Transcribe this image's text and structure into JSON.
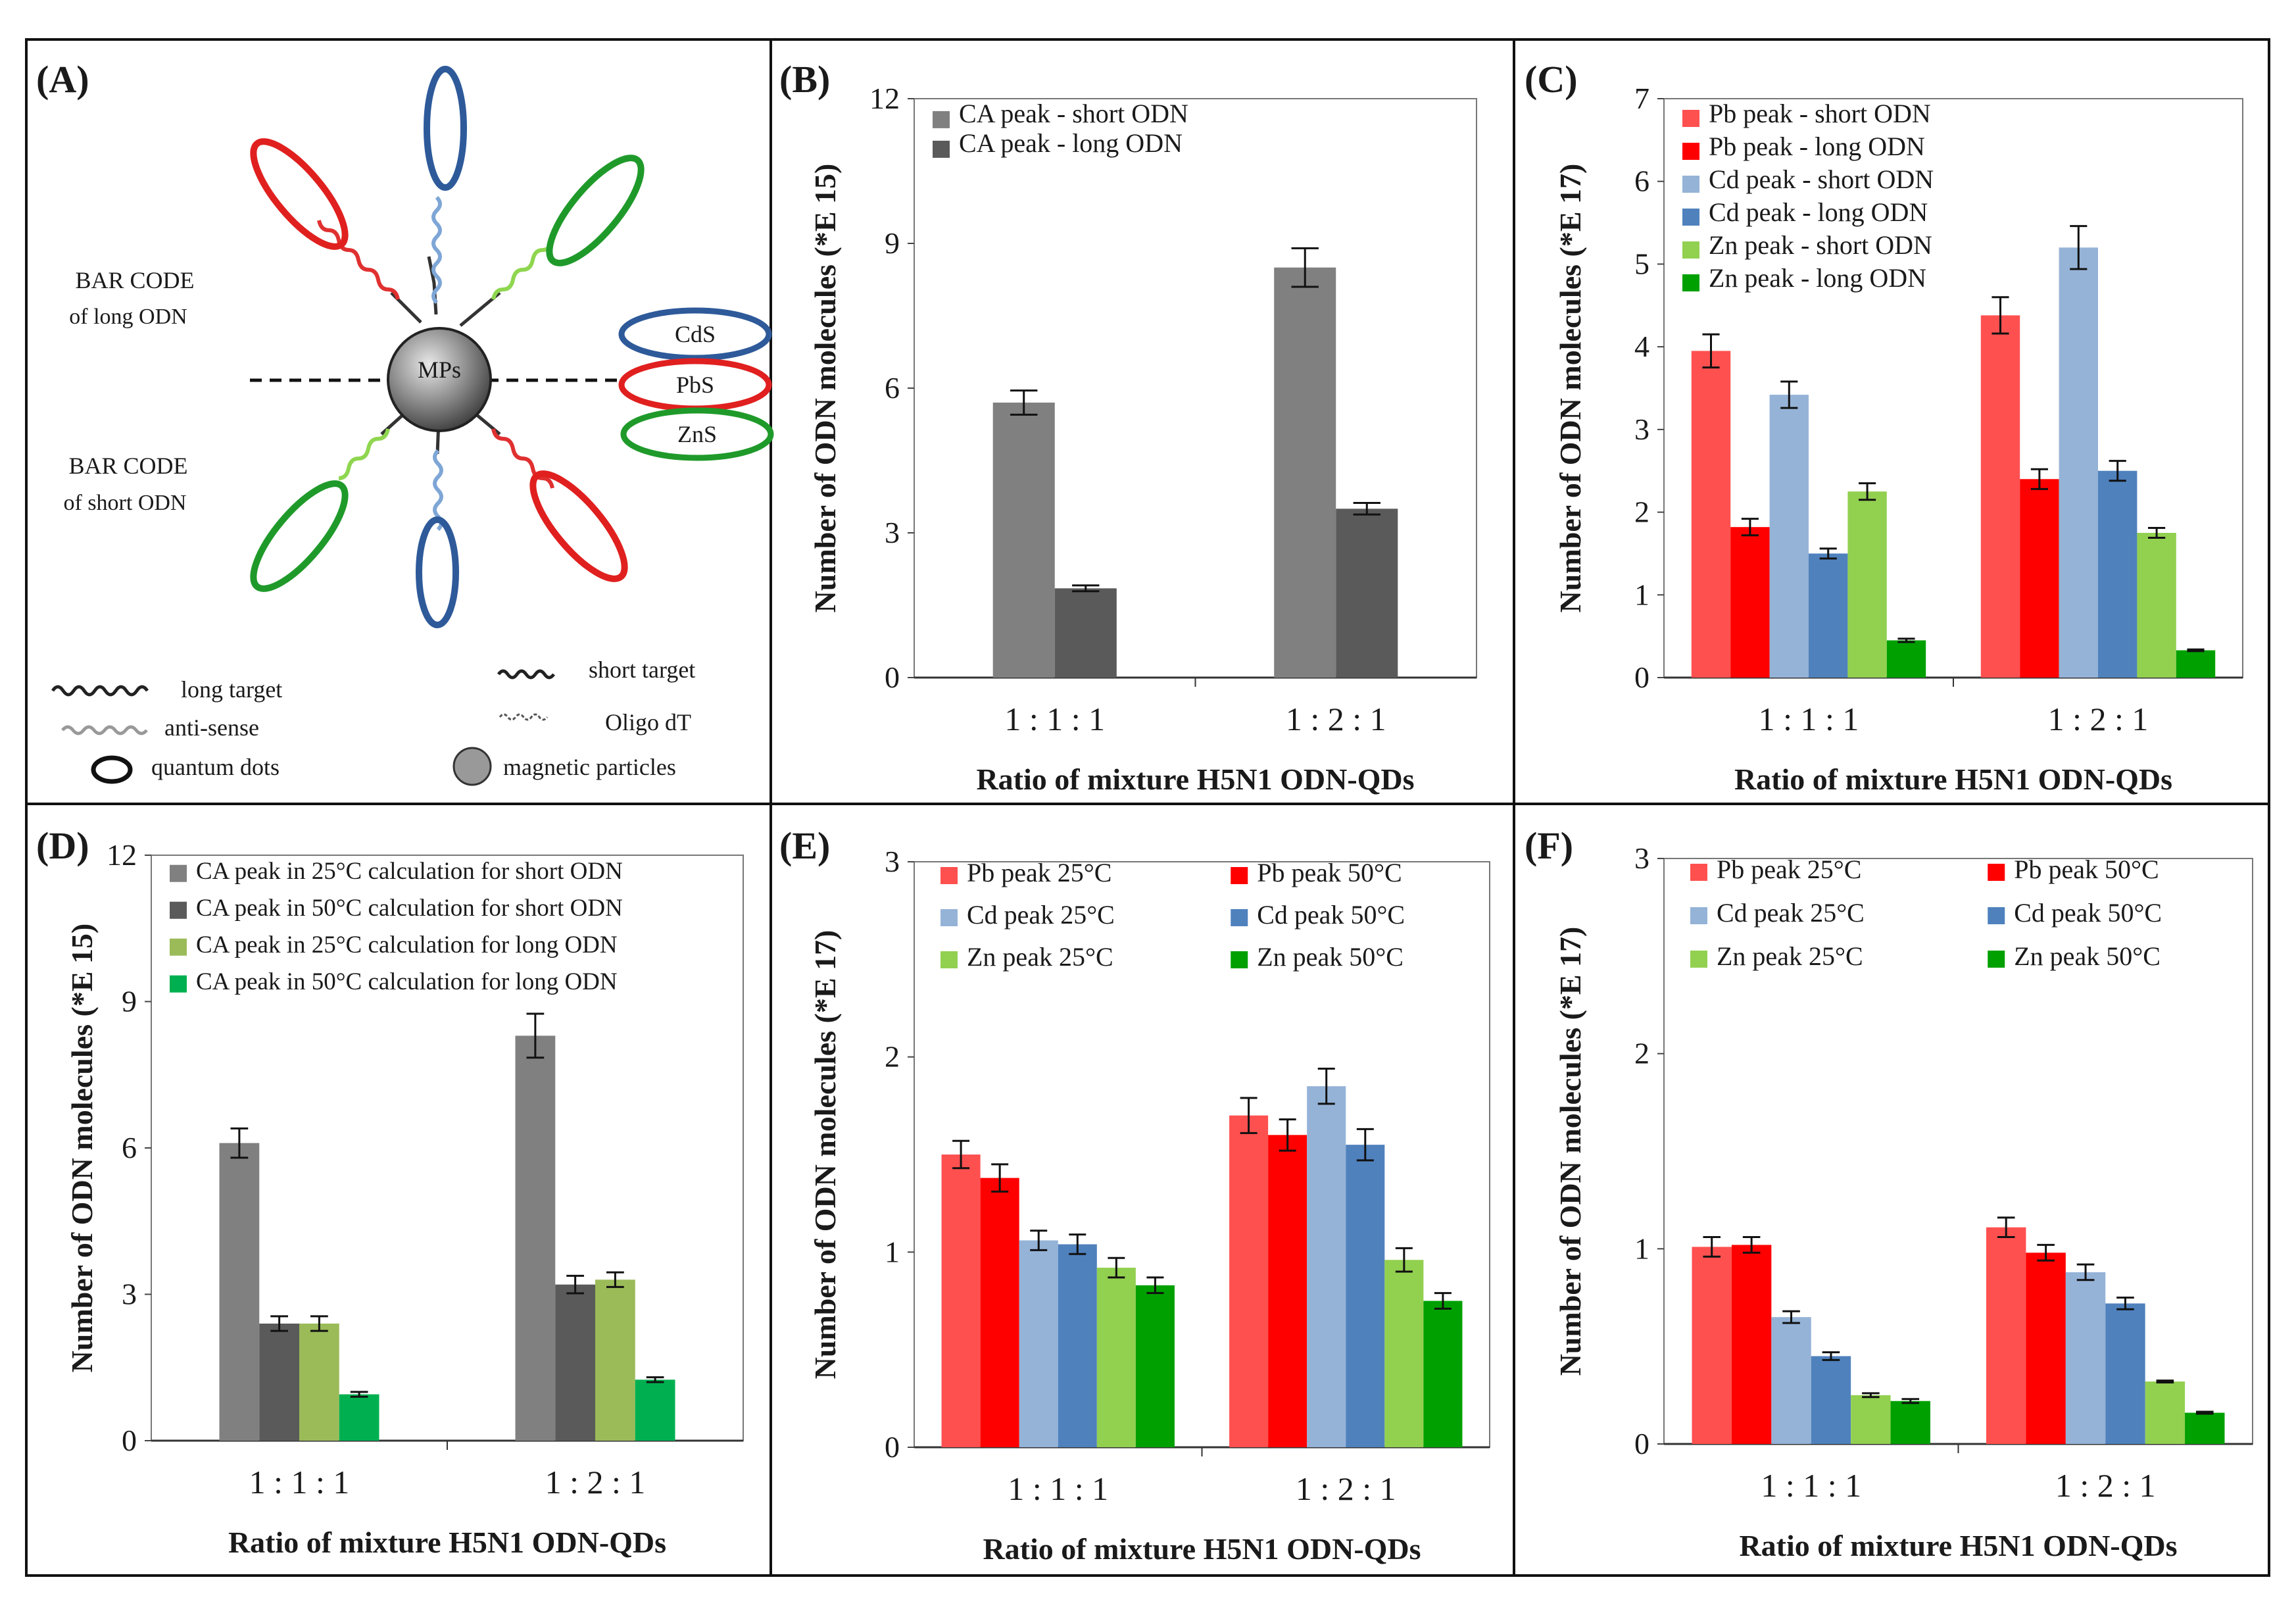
{
  "colors": {
    "gray_light": "#808080",
    "gray_dark": "#5a5a5a",
    "olive_green": "#9bbb59",
    "mint_green": "#00b050",
    "pb_short": "#ff5050",
    "pb_long": "#ff0000",
    "cd_short": "#95b3d7",
    "cd_long": "#4f81bd",
    "zn_short": "#92d050",
    "zn_long": "#00a000",
    "cds_ring": "#2e5a9a",
    "pbs_ring": "#e0201f",
    "zns_ring": "#1f9a2a"
  },
  "diagram": {
    "label": "(A)",
    "center_label": "MPs",
    "barcode_long_line1": "BAR CODE",
    "barcode_long_line2": "of long ODN",
    "barcode_short_line1": "BAR CODE",
    "barcode_short_line2": "of short ODN",
    "qd_labels": [
      "CdS",
      "PbS",
      "ZnS"
    ],
    "legend": {
      "long_target": "long target",
      "anti_sense": "anti-sense",
      "quantum_dots": "quantum dots",
      "short_target": "short target",
      "oligo_dt": "Oligo dT",
      "magnetic_particles": "magnetic particles"
    }
  },
  "chart_data": [
    {
      "id": "B",
      "label": "(B)",
      "type": "bar",
      "categories": [
        "1 : 1 : 1",
        "1 : 2 : 1"
      ],
      "ylim": [
        0,
        12
      ],
      "yticks": [
        0,
        3,
        6,
        9,
        12
      ],
      "ylabel": "Number of ODN molecules (*E 15)",
      "xlabel": "Ratio of mixture  H5N1 ODN-QDs",
      "legend_position": "top-left",
      "series": [
        {
          "name": "CA peak - short ODN",
          "color": "#808080",
          "values": [
            5.7,
            8.5
          ],
          "errors": [
            0.25,
            0.4
          ]
        },
        {
          "name": "CA peak - long ODN",
          "color": "#5a5a5a",
          "values": [
            1.85,
            3.5
          ],
          "errors": [
            0.06,
            0.12
          ]
        }
      ]
    },
    {
      "id": "C",
      "label": "(C)",
      "type": "bar",
      "categories": [
        "1 : 1 : 1",
        "1 : 2 : 1"
      ],
      "ylim": [
        0,
        7
      ],
      "yticks": [
        0,
        1,
        2,
        3,
        4,
        5,
        6,
        7
      ],
      "ylabel": "Number of ODN molecules (*E 17)",
      "xlabel": "Ratio of mixture  H5N1 ODN-QDs",
      "legend_position": "top-left",
      "series": [
        {
          "name": "Pb peak - short ODN",
          "color": "#ff5050",
          "values": [
            3.95,
            4.38
          ],
          "errors": [
            0.2,
            0.22
          ]
        },
        {
          "name": "Pb peak - long ODN",
          "color": "#ff0000",
          "values": [
            1.82,
            2.4
          ],
          "errors": [
            0.1,
            0.12
          ]
        },
        {
          "name": "Cd peak - short ODN",
          "color": "#95b3d7",
          "values": [
            3.42,
            5.2
          ],
          "errors": [
            0.16,
            0.26
          ]
        },
        {
          "name": "Cd peak - long ODN",
          "color": "#4f81bd",
          "values": [
            1.5,
            2.5
          ],
          "errors": [
            0.06,
            0.12
          ]
        },
        {
          "name": "Zn peak - short ODN",
          "color": "#92d050",
          "values": [
            2.25,
            1.75
          ],
          "errors": [
            0.1,
            0.06
          ]
        },
        {
          "name": "Zn peak - long ODN",
          "color": "#00a000",
          "values": [
            0.45,
            0.33
          ],
          "errors": [
            0.02,
            0.01
          ]
        }
      ]
    },
    {
      "id": "D",
      "label": "(D)",
      "type": "bar",
      "categories": [
        "1 : 1 : 1",
        "1 : 2 : 1"
      ],
      "ylim": [
        0,
        12
      ],
      "yticks": [
        0,
        3,
        6,
        9,
        12
      ],
      "ylabel": "Number of ODN molecules (*E 15)",
      "xlabel": "Ratio of mixture  H5N1 ODN-QDs",
      "legend_position": "top-left",
      "series": [
        {
          "name": "CA peak in 25°C calculation for short ODN",
          "color": "#808080",
          "values": [
            6.1,
            8.3
          ],
          "errors": [
            0.3,
            0.45
          ]
        },
        {
          "name": "CA peak in 50°C calculation for short ODN",
          "color": "#5a5a5a",
          "values": [
            2.4,
            3.2
          ],
          "errors": [
            0.15,
            0.18
          ]
        },
        {
          "name": "CA peak in 25°C calculation for long ODN",
          "color": "#9bbb59",
          "values": [
            2.4,
            3.3
          ],
          "errors": [
            0.15,
            0.15
          ]
        },
        {
          "name": "CA peak in 50°C calculation for long ODN",
          "color": "#00b050",
          "values": [
            0.95,
            1.25
          ],
          "errors": [
            0.05,
            0.05
          ]
        }
      ]
    },
    {
      "id": "E",
      "label": "(E)",
      "type": "bar",
      "categories": [
        "1 : 1 : 1",
        "1 : 2 : 1"
      ],
      "ylim": [
        0,
        3
      ],
      "yticks": [
        0,
        1,
        2,
        3
      ],
      "ylabel": "Number of ODN molecules (*E 17)",
      "xlabel": "Ratio of mixture  H5N1 ODN-QDs",
      "legend_position": "top",
      "series": [
        {
          "name": "Pb peak 25°C",
          "color": "#ff5050",
          "values": [
            1.5,
            1.7
          ],
          "errors": [
            0.07,
            0.09
          ]
        },
        {
          "name": "Pb peak 50°C",
          "color": "#ff0000",
          "values": [
            1.38,
            1.6
          ],
          "errors": [
            0.07,
            0.08
          ]
        },
        {
          "name": "Cd peak 25°C",
          "color": "#95b3d7",
          "values": [
            1.06,
            1.85
          ],
          "errors": [
            0.05,
            0.09
          ]
        },
        {
          "name": "Cd peak 50°C",
          "color": "#4f81bd",
          "values": [
            1.04,
            1.55
          ],
          "errors": [
            0.05,
            0.08
          ]
        },
        {
          "name": "Zn peak 25°C",
          "color": "#92d050",
          "values": [
            0.92,
            0.96
          ],
          "errors": [
            0.05,
            0.06
          ]
        },
        {
          "name": "Zn peak 50°C",
          "color": "#00a000",
          "values": [
            0.83,
            0.75
          ],
          "errors": [
            0.04,
            0.04
          ]
        }
      ]
    },
    {
      "id": "F",
      "label": "(F)",
      "type": "bar",
      "categories": [
        "1 : 1 : 1",
        "1 : 2 : 1"
      ],
      "ylim": [
        0,
        3
      ],
      "yticks": [
        0,
        1,
        2,
        3
      ],
      "ylabel": "Number of ODN molecules (*E 17)",
      "xlabel": "Ratio of mixture  H5N1 ODN-QDs",
      "legend_position": "top",
      "series": [
        {
          "name": "Pb peak 25°C",
          "color": "#ff5050",
          "values": [
            1.01,
            1.11
          ],
          "errors": [
            0.05,
            0.05
          ]
        },
        {
          "name": "Pb peak 50°C",
          "color": "#ff0000",
          "values": [
            1.02,
            0.98
          ],
          "errors": [
            0.04,
            0.04
          ]
        },
        {
          "name": "Cd peak 25°C",
          "color": "#95b3d7",
          "values": [
            0.65,
            0.88
          ],
          "errors": [
            0.03,
            0.04
          ]
        },
        {
          "name": "Cd peak 50°C",
          "color": "#4f81bd",
          "values": [
            0.45,
            0.72
          ],
          "errors": [
            0.02,
            0.03
          ]
        },
        {
          "name": "Zn peak 25°C",
          "color": "#92d050",
          "values": [
            0.25,
            0.32
          ],
          "errors": [
            0.01,
            0.005
          ]
        },
        {
          "name": "Zn peak 50°C",
          "color": "#00a000",
          "values": [
            0.22,
            0.16
          ],
          "errors": [
            0.01,
            0.005
          ]
        }
      ]
    }
  ]
}
